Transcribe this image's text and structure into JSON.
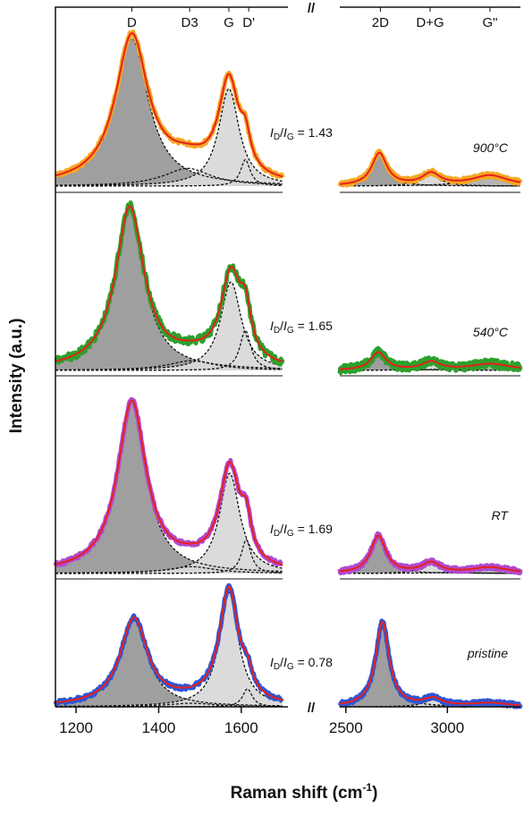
{
  "chart_data": {
    "type": "line",
    "title": "",
    "xlabel": "Raman shift (cm",
    "xlabel_sup": "-1",
    "xlabel_end": ")",
    "ylabel": "Intensity (a.u.)",
    "axis_break": "//",
    "x_left_range": [
      1150,
      1700
    ],
    "x_right_range": [
      2470,
      3360
    ],
    "x_ticks_left": [
      1200,
      1400,
      1600
    ],
    "x_ticks_right": [
      2500,
      3000
    ],
    "peak_labels": [
      {
        "text": "D",
        "x": 1335
      },
      {
        "text": "D3",
        "x": 1475
      },
      {
        "text": "G",
        "x": 1570
      },
      {
        "text": "D'",
        "x": 1618
      },
      {
        "text": "2D",
        "x": 2670
      },
      {
        "text": "D+G",
        "x": 2915
      },
      {
        "text": "G\"",
        "x": 3210
      }
    ],
    "series": [
      {
        "name": "900°C",
        "ratio_text": "= 1.43",
        "color": "#f5a623",
        "fit_color": "#e8201a",
        "amplitude": 1.0,
        "bands": [
          {
            "x0": 1335,
            "w": 48,
            "h": 1.0,
            "fill": "#9a9a9a"
          },
          {
            "x0": 1470,
            "w": 70,
            "h": 0.12,
            "fill": "none"
          },
          {
            "x0": 1570,
            "w": 30,
            "h": 0.66,
            "fill": "#d9d9d9"
          },
          {
            "x0": 1610,
            "w": 14,
            "h": 0.18,
            "fill": "none"
          },
          {
            "x0": 2665,
            "w": 45,
            "h": 0.22,
            "fill": "#9a9a9a"
          },
          {
            "x0": 2920,
            "w": 55,
            "h": 0.08,
            "fill": "#d9d9d9"
          },
          {
            "x0": 3210,
            "w": 110,
            "h": 0.07,
            "fill": "#b0b0b0"
          }
        ]
      },
      {
        "name": "540°C",
        "ratio_text": "= 1.65",
        "color": "#2ca02c",
        "fit_color": "#e8201a",
        "amplitude": 1.0,
        "bands": [
          {
            "x0": 1330,
            "w": 42,
            "h": 1.0,
            "fill": "#9a9a9a"
          },
          {
            "x0": 1480,
            "w": 70,
            "h": 0.06,
            "fill": "none"
          },
          {
            "x0": 1575,
            "w": 30,
            "h": 0.55,
            "fill": "#d9d9d9"
          },
          {
            "x0": 1610,
            "w": 16,
            "h": 0.25,
            "fill": "none"
          },
          {
            "x0": 2660,
            "w": 45,
            "h": 0.11,
            "fill": "#9a9a9a"
          },
          {
            "x0": 2920,
            "w": 55,
            "h": 0.05,
            "fill": "#d9d9d9"
          },
          {
            "x0": 3210,
            "w": 120,
            "h": 0.04,
            "fill": "#b0b0b0"
          }
        ]
      },
      {
        "name": "RT",
        "ratio_text": "= 1.69",
        "color": "#b04ad0",
        "fit_color": "#e8201a",
        "amplitude": 1.0,
        "bands": [
          {
            "x0": 1335,
            "w": 42,
            "h": 1.0,
            "fill": "#9a9a9a"
          },
          {
            "x0": 1480,
            "w": 70,
            "h": 0.04,
            "fill": "none"
          },
          {
            "x0": 1572,
            "w": 30,
            "h": 0.59,
            "fill": "#d9d9d9"
          },
          {
            "x0": 1612,
            "w": 14,
            "h": 0.2,
            "fill": "none"
          },
          {
            "x0": 2660,
            "w": 45,
            "h": 0.22,
            "fill": "#9a9a9a"
          },
          {
            "x0": 2920,
            "w": 55,
            "h": 0.06,
            "fill": "#d9d9d9"
          },
          {
            "x0": 3210,
            "w": 110,
            "h": 0.035,
            "fill": "#b0b0b0"
          }
        ]
      },
      {
        "name": "pristine",
        "ratio_text": "= 0.78",
        "color": "#2d56d6",
        "fit_color": "#e8201a",
        "amplitude": 1.0,
        "bands": [
          {
            "x0": 1340,
            "w": 40,
            "h": 0.72,
            "fill": "#9a9a9a"
          },
          {
            "x0": 1480,
            "w": 70,
            "h": 0.03,
            "fill": "none"
          },
          {
            "x0": 1570,
            "w": 28,
            "h": 0.95,
            "fill": "#d9d9d9"
          },
          {
            "x0": 1615,
            "w": 14,
            "h": 0.15,
            "fill": "none"
          },
          {
            "x0": 2680,
            "w": 40,
            "h": 0.7,
            "fill": "#9a9a9a"
          },
          {
            "x0": 2930,
            "w": 55,
            "h": 0.06,
            "fill": "#d9d9d9"
          },
          {
            "x0": 3210,
            "w": 110,
            "h": 0.03,
            "fill": "#b0b0b0"
          }
        ]
      }
    ],
    "grid": false,
    "legend": "none"
  }
}
